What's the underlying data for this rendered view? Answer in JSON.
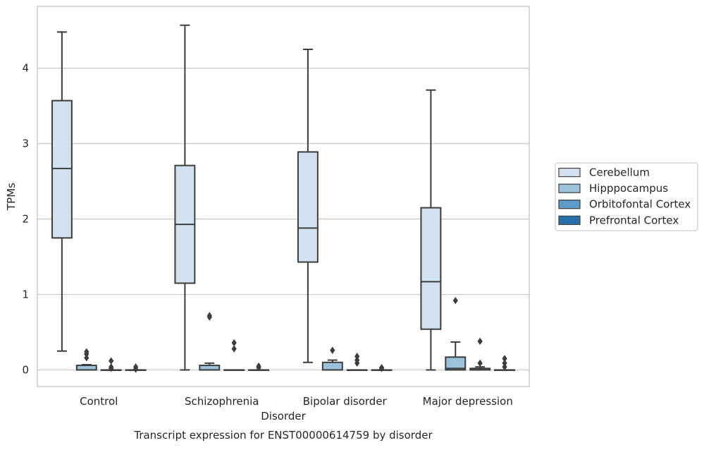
{
  "chart_data": {
    "type": "box",
    "title": "Transcript expression for ENST00000614759 by disorder",
    "xlabel": "Disorder",
    "ylabel": "TPMs",
    "ylim": [
      -0.22,
      4.82
    ],
    "yticks": [
      0,
      1,
      2,
      3,
      4
    ],
    "grid": "horizontal",
    "legend_placement": "right",
    "categories": [
      "Control",
      "Schizophrenia",
      "Bipolar disorder",
      "Major depression"
    ],
    "series": [
      {
        "name": "Cerebellum",
        "color": "#d2e1f0",
        "boxes": [
          {
            "whislo": 0.25,
            "q1": 1.75,
            "med": 2.67,
            "q3": 3.57,
            "whishi": 4.48,
            "fliers": []
          },
          {
            "whislo": 0.0,
            "q1": 1.15,
            "med": 1.93,
            "q3": 2.71,
            "whishi": 4.57,
            "fliers": []
          },
          {
            "whislo": 0.1,
            "q1": 1.43,
            "med": 1.88,
            "q3": 2.89,
            "whishi": 4.25,
            "fliers": []
          },
          {
            "whislo": 0.0,
            "q1": 0.54,
            "med": 1.17,
            "q3": 2.15,
            "whishi": 3.71,
            "fliers": []
          }
        ]
      },
      {
        "name": "Hipppocampus",
        "color": "#9ac2db",
        "boxes": [
          {
            "whislo": 0.0,
            "q1": 0.0,
            "med": 0.0,
            "q3": 0.06,
            "whishi": 0.07,
            "fliers": [
              0.16,
              0.21,
              0.24
            ]
          },
          {
            "whislo": 0.0,
            "q1": 0.0,
            "med": 0.0,
            "q3": 0.06,
            "whishi": 0.09,
            "fliers": [
              0.7,
              0.72
            ]
          },
          {
            "whislo": 0.0,
            "q1": 0.0,
            "med": 0.0,
            "q3": 0.1,
            "whishi": 0.13,
            "fliers": [
              0.26
            ]
          },
          {
            "whislo": 0.0,
            "q1": 0.0,
            "med": 0.02,
            "q3": 0.17,
            "whishi": 0.37,
            "fliers": [
              0.92
            ]
          }
        ]
      },
      {
        "name": "Orbitofontal Cortex",
        "color": "#5c9bc9",
        "boxes": [
          {
            "whislo": 0.0,
            "q1": 0.0,
            "med": 0.0,
            "q3": 0.0,
            "whishi": 0.0,
            "fliers": [
              0.02,
              0.04,
              0.12
            ]
          },
          {
            "whislo": 0.0,
            "q1": 0.0,
            "med": 0.0,
            "q3": 0.0,
            "whishi": 0.0,
            "fliers": [
              0.28,
              0.36
            ]
          },
          {
            "whislo": 0.0,
            "q1": 0.0,
            "med": 0.0,
            "q3": 0.0,
            "whishi": 0.0,
            "fliers": [
              0.09,
              0.13,
              0.18
            ]
          },
          {
            "whislo": 0.0,
            "q1": 0.0,
            "med": 0.0,
            "q3": 0.02,
            "whishi": 0.04,
            "fliers": [
              0.09,
              0.38
            ]
          }
        ]
      },
      {
        "name": "Prefrontal Cortex",
        "color": "#2a6fad",
        "boxes": [
          {
            "whislo": 0.0,
            "q1": 0.0,
            "med": 0.0,
            "q3": 0.0,
            "whishi": 0.0,
            "fliers": [
              0.01,
              0.04
            ]
          },
          {
            "whislo": 0.0,
            "q1": 0.0,
            "med": 0.0,
            "q3": 0.0,
            "whishi": 0.0,
            "fliers": [
              0.03,
              0.05
            ]
          },
          {
            "whislo": 0.0,
            "q1": 0.0,
            "med": 0.0,
            "q3": 0.0,
            "whishi": 0.0,
            "fliers": [
              0.02,
              0.03
            ]
          },
          {
            "whislo": 0.0,
            "q1": 0.0,
            "med": 0.0,
            "q3": 0.0,
            "whishi": 0.0,
            "fliers": [
              0.04,
              0.09,
              0.15
            ]
          }
        ]
      }
    ]
  }
}
